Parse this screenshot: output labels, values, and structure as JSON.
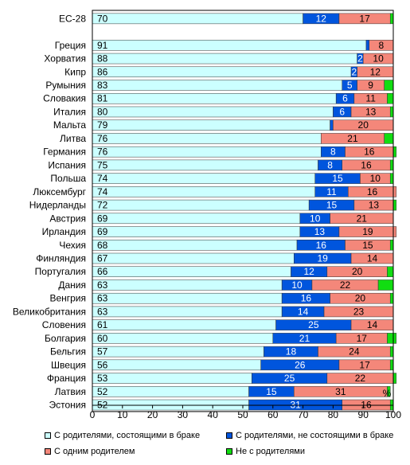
{
  "chart_data": {
    "type": "bar",
    "orientation": "horizontal",
    "stacked": true,
    "categories": [
      "ЕС-28",
      "",
      "Греция",
      "Хорватия",
      "Кипр",
      "Румыния",
      "Словакия",
      "Италия",
      "Мальта",
      "Литва",
      "Германия",
      "Испания",
      "Польша",
      "Люксембург",
      "Нидерланды",
      "Австрия",
      "Ирландия",
      "Чехия",
      "Финляндия",
      "Португалия",
      "Дания",
      "Венгрия",
      "Великобритания",
      "Словения",
      "Болгария",
      "Бельгия",
      "Швеция",
      "Франция",
      "Латвия",
      "Эстония"
    ],
    "series": [
      {
        "name": "С родителями, состоящими в браке",
        "color": "#ccffff",
        "values": [
          70,
          null,
          91,
          88,
          86,
          83,
          81,
          80,
          79,
          76,
          76,
          75,
          74,
          74,
          72,
          69,
          69,
          68,
          67,
          66,
          63,
          63,
          63,
          61,
          60,
          57,
          56,
          53,
          52,
          52
        ]
      },
      {
        "name": "С родителями, не состоящими в браке",
        "color": "#0055dd",
        "values": [
          12,
          null,
          1,
          2,
          2,
          5,
          6,
          6,
          1,
          0,
          8,
          8,
          15,
          11,
          15,
          10,
          13,
          16,
          19,
          12,
          10,
          16,
          14,
          25,
          21,
          18,
          26,
          25,
          15,
          31
        ]
      },
      {
        "name": "С одним родителем",
        "color": "#f4877a",
        "values": [
          17,
          null,
          8,
          10,
          12,
          9,
          11,
          13,
          20,
          21,
          16,
          16,
          10,
          16,
          13,
          21,
          19,
          15,
          14,
          20,
          22,
          20,
          23,
          14,
          17,
          24,
          17,
          22,
          31,
          16
        ]
      },
      {
        "name": "Не  с родителями",
        "color": "#11dd11",
        "values": [
          1,
          null,
          0,
          0,
          0,
          3,
          2,
          1,
          0,
          3,
          1,
          1,
          1,
          0,
          1,
          0,
          0,
          1,
          0,
          2,
          5,
          1,
          0,
          0,
          3,
          1,
          1,
          1,
          1,
          1
        ]
      }
    ],
    "labels": [
      [
        "70",
        "12",
        "17",
        ""
      ],
      [
        "",
        "",
        "",
        ""
      ],
      [
        "91",
        "",
        "8",
        ""
      ],
      [
        "88",
        "2",
        "10",
        ""
      ],
      [
        "86",
        "2",
        "12",
        ""
      ],
      [
        "83",
        "5",
        "9",
        ""
      ],
      [
        "81",
        "6",
        "11",
        ""
      ],
      [
        "80",
        "6",
        "13",
        ""
      ],
      [
        "79",
        "",
        "20",
        ""
      ],
      [
        "76",
        "",
        "21",
        ""
      ],
      [
        "76",
        "8",
        "16",
        ""
      ],
      [
        "75",
        "8",
        "16",
        ""
      ],
      [
        "74",
        "15",
        "10",
        ""
      ],
      [
        "74",
        "11",
        "16",
        ""
      ],
      [
        "72",
        "15",
        "13",
        ""
      ],
      [
        "69",
        "10",
        "21",
        ""
      ],
      [
        "69",
        "13",
        "19",
        ""
      ],
      [
        "68",
        "16",
        "15",
        ""
      ],
      [
        "67",
        "19",
        "14",
        ""
      ],
      [
        "66",
        "12",
        "20",
        ""
      ],
      [
        "63",
        "10",
        "22",
        ""
      ],
      [
        "63",
        "16",
        "20",
        ""
      ],
      [
        "63",
        "14",
        "23",
        ""
      ],
      [
        "61",
        "25",
        "14",
        ""
      ],
      [
        "60",
        "21",
        "17",
        ""
      ],
      [
        "57",
        "18",
        "24",
        ""
      ],
      [
        "56",
        "26",
        "17",
        ""
      ],
      [
        "53",
        "25",
        "22",
        ""
      ],
      [
        "52",
        "15",
        "31",
        ""
      ],
      [
        "52",
        "31",
        "16",
        ""
      ]
    ],
    "xticks": [
      "0",
      "10",
      "20",
      "30",
      "40",
      "50",
      "60",
      "70",
      "80",
      "90",
      "100"
    ],
    "xlim": [
      0,
      100
    ],
    "xlabel": "%",
    "title": "",
    "legend_position": "bottom",
    "grid": false
  },
  "legend": [
    {
      "label": "С родителями, состоящими в браке",
      "color": "#ccffff"
    },
    {
      "label": "С родителями, не состоящими в браке",
      "color": "#0055dd"
    },
    {
      "label": "С одним родителем",
      "color": "#f4877a"
    },
    {
      "label": "Не  с родителями",
      "color": "#11dd11"
    }
  ]
}
